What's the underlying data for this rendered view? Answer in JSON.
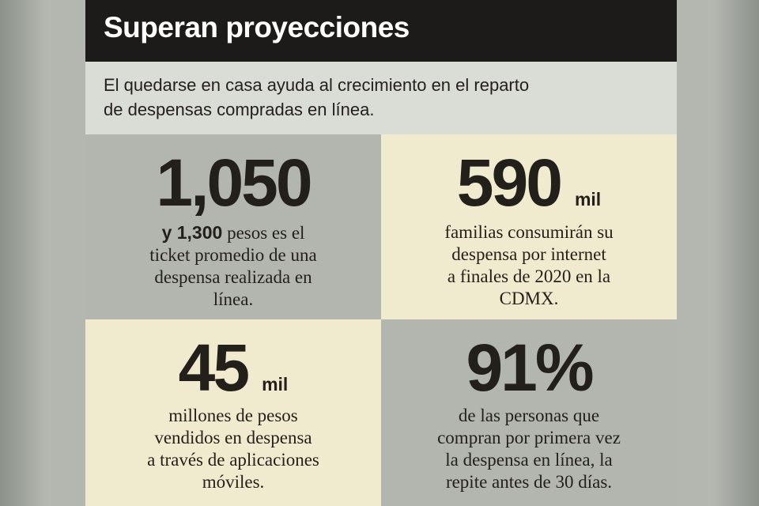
{
  "header": {
    "title": "Superan proyecciones",
    "subtitle_line1": "El quedarse en casa ayuda al crecimiento en el reparto",
    "subtitle_line2": "de despensas compradas en línea."
  },
  "stats": [
    {
      "value": "1,050",
      "unit": "",
      "desc_bold": "y 1,300",
      "desc_line1_rest": " pesos es el",
      "desc_line2": "ticket promedio de una",
      "desc_line3": "despensa realizada en",
      "desc_line4": "línea."
    },
    {
      "value": "590",
      "unit": "mil",
      "desc_line1": "familias consumirán su",
      "desc_line2": "despensa por internet",
      "desc_line3": "a finales de 2020 en la",
      "desc_line4": "CDMX."
    },
    {
      "value": "45",
      "unit": "mil",
      "desc_line1": "millones de pesos",
      "desc_line2": "vendidos en despensa",
      "desc_line3": "a través de aplicaciones",
      "desc_line4": "móviles."
    },
    {
      "value": "91%",
      "unit": "",
      "desc_line1": "de las personas que",
      "desc_line2": "compran por primera vez",
      "desc_line3": "la despensa en línea, la",
      "desc_line4": "repite antes de 30 días."
    }
  ],
  "colors": {
    "title_bar": "#1d1b19",
    "subtitle_band": "#dadcd6",
    "gray_cell": "#b3b6ae",
    "cream_cell": "#f0ebce",
    "text": "#231f1a"
  }
}
